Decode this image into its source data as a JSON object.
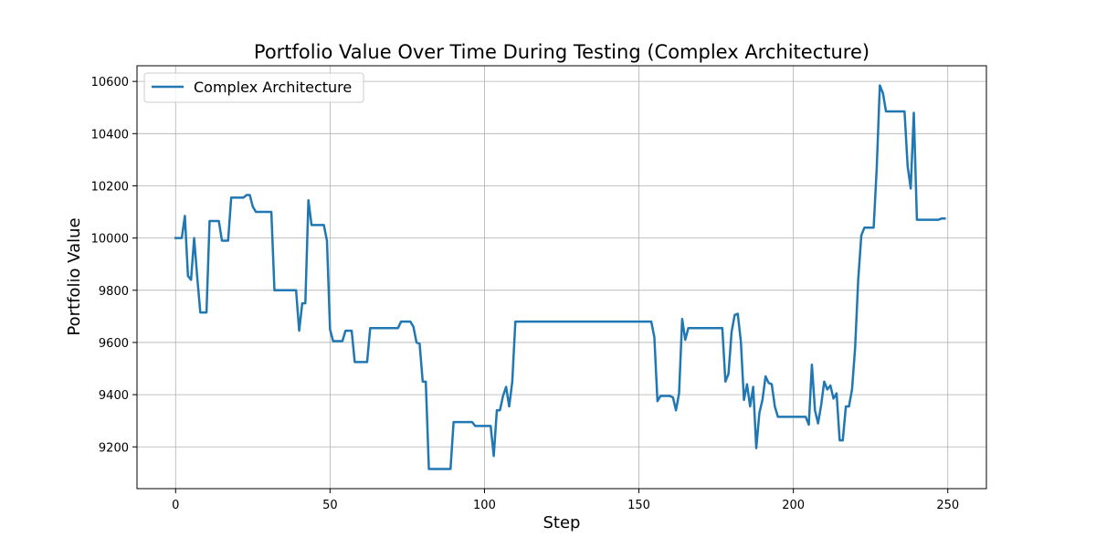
{
  "chart_data": {
    "type": "line",
    "title": "Portfolio Value Over Time During Testing (Complex Architecture)",
    "xlabel": "Step",
    "ylabel": "Portfolio Value",
    "xlim": [
      -12.5,
      262.5
    ],
    "ylim": [
      9040,
      10660
    ],
    "xticks": [
      0,
      50,
      100,
      150,
      200,
      250
    ],
    "yticks": [
      9200,
      9400,
      9600,
      9800,
      10000,
      10200,
      10400,
      10600
    ],
    "grid": true,
    "legend_position": "top-left",
    "series": [
      {
        "name": "Complex Architecture",
        "color": "#1f77b4",
        "points": [
          [
            0,
            10000
          ],
          [
            2,
            10000
          ],
          [
            3,
            10085
          ],
          [
            4,
            9855
          ],
          [
            5,
            9840
          ],
          [
            6,
            10000
          ],
          [
            7,
            9850
          ],
          [
            8,
            9715
          ],
          [
            10,
            9715
          ],
          [
            11,
            10065
          ],
          [
            14,
            10065
          ],
          [
            15,
            9990
          ],
          [
            17,
            9990
          ],
          [
            18,
            10155
          ],
          [
            22,
            10155
          ],
          [
            23,
            10165
          ],
          [
            24,
            10165
          ],
          [
            25,
            10120
          ],
          [
            26,
            10100
          ],
          [
            31,
            10100
          ],
          [
            32,
            9800
          ],
          [
            39,
            9800
          ],
          [
            40,
            9645
          ],
          [
            41,
            9750
          ],
          [
            42,
            9750
          ],
          [
            43,
            10145
          ],
          [
            44,
            10050
          ],
          [
            48,
            10050
          ],
          [
            49,
            9990
          ],
          [
            50,
            9650
          ],
          [
            51,
            9605
          ],
          [
            54,
            9605
          ],
          [
            55,
            9645
          ],
          [
            57,
            9645
          ],
          [
            58,
            9525
          ],
          [
            62,
            9525
          ],
          [
            63,
            9655
          ],
          [
            72,
            9655
          ],
          [
            73,
            9680
          ],
          [
            76,
            9680
          ],
          [
            77,
            9660
          ],
          [
            78,
            9600
          ],
          [
            79,
            9595
          ],
          [
            80,
            9450
          ],
          [
            81,
            9450
          ],
          [
            82,
            9115
          ],
          [
            89,
            9115
          ],
          [
            90,
            9295
          ],
          [
            96,
            9295
          ],
          [
            97,
            9280
          ],
          [
            102,
            9280
          ],
          [
            103,
            9165
          ],
          [
            104,
            9340
          ],
          [
            105,
            9340
          ],
          [
            106,
            9395
          ],
          [
            107,
            9430
          ],
          [
            108,
            9355
          ],
          [
            109,
            9450
          ],
          [
            110,
            9680
          ],
          [
            154,
            9680
          ],
          [
            155,
            9620
          ],
          [
            156,
            9375
          ],
          [
            157,
            9395
          ],
          [
            160,
            9395
          ],
          [
            161,
            9390
          ],
          [
            162,
            9340
          ],
          [
            163,
            9405
          ],
          [
            164,
            9690
          ],
          [
            165,
            9610
          ],
          [
            166,
            9655
          ],
          [
            177,
            9655
          ],
          [
            178,
            9450
          ],
          [
            179,
            9480
          ],
          [
            180,
            9640
          ],
          [
            181,
            9705
          ],
          [
            182,
            9710
          ],
          [
            183,
            9605
          ],
          [
            184,
            9380
          ],
          [
            185,
            9440
          ],
          [
            186,
            9355
          ],
          [
            187,
            9430
          ],
          [
            188,
            9195
          ],
          [
            189,
            9330
          ],
          [
            190,
            9380
          ],
          [
            191,
            9470
          ],
          [
            192,
            9445
          ],
          [
            193,
            9440
          ],
          [
            194,
            9355
          ],
          [
            195,
            9315
          ],
          [
            204,
            9315
          ],
          [
            205,
            9285
          ],
          [
            206,
            9515
          ],
          [
            207,
            9340
          ],
          [
            208,
            9290
          ],
          [
            209,
            9360
          ],
          [
            210,
            9450
          ],
          [
            211,
            9420
          ],
          [
            212,
            9435
          ],
          [
            213,
            9385
          ],
          [
            214,
            9405
          ],
          [
            215,
            9225
          ],
          [
            216,
            9225
          ],
          [
            217,
            9355
          ],
          [
            218,
            9355
          ],
          [
            219,
            9420
          ],
          [
            220,
            9580
          ],
          [
            221,
            9840
          ],
          [
            222,
            10010
          ],
          [
            223,
            10040
          ],
          [
            226,
            10040
          ],
          [
            227,
            10270
          ],
          [
            228,
            10585
          ],
          [
            229,
            10555
          ],
          [
            230,
            10485
          ],
          [
            236,
            10485
          ],
          [
            237,
            10275
          ],
          [
            238,
            10190
          ],
          [
            239,
            10480
          ],
          [
            240,
            10070
          ],
          [
            247,
            10070
          ],
          [
            248,
            10075
          ],
          [
            249,
            10075
          ]
        ]
      }
    ]
  }
}
